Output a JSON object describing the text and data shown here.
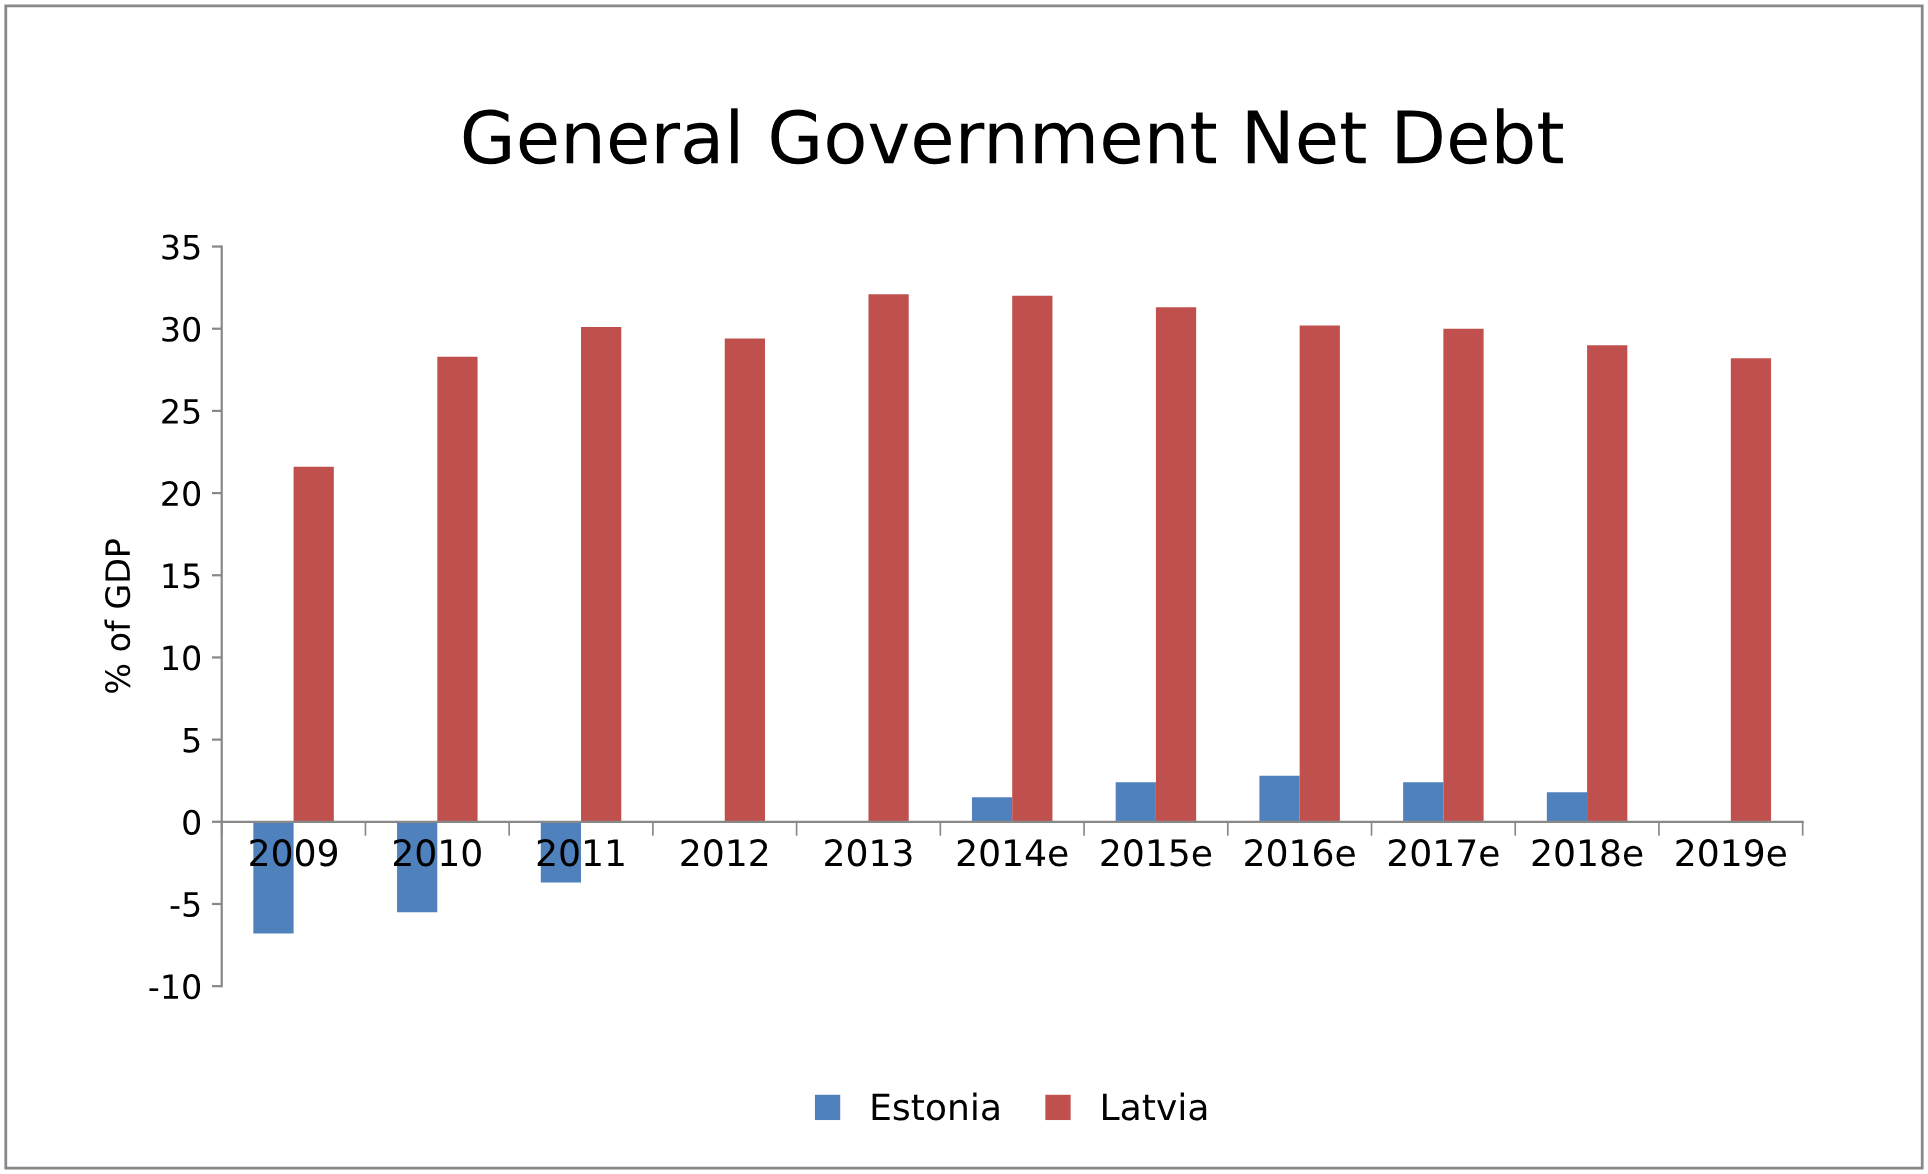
{
  "chart_data": {
    "type": "bar",
    "title": "General Government Net Debt",
    "ylabel": "% of GDP",
    "categories": [
      "2009",
      "2010",
      "2011",
      "2012",
      "2013",
      "2014e",
      "2015e",
      "2016e",
      "2017e",
      "2018e",
      "2019e"
    ],
    "series": [
      {
        "name": "Estonia",
        "color": "#4f81bd",
        "values": [
          -6.8,
          -5.5,
          -3.7,
          null,
          null,
          1.5,
          2.4,
          2.8,
          2.4,
          1.8,
          null
        ]
      },
      {
        "name": "Latvia",
        "color": "#c0504d",
        "values": [
          21.6,
          28.3,
          30.1,
          29.4,
          32.1,
          32.0,
          31.3,
          30.2,
          30.0,
          29.0,
          28.2
        ]
      }
    ],
    "ylim": [
      -10,
      35
    ],
    "yticks": [
      -10,
      -5,
      0,
      5,
      10,
      15,
      20,
      25,
      30,
      35
    ],
    "grid": false,
    "legend": "bottom"
  }
}
